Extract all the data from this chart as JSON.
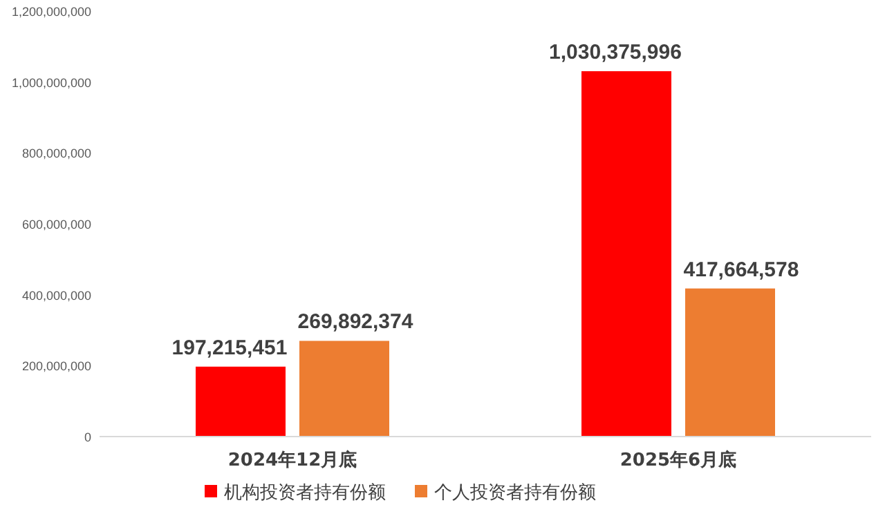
{
  "chart_data": {
    "type": "bar",
    "categories": [
      "2024年12月底",
      "2025年6月底"
    ],
    "series": [
      {
        "name": "机构投资者持有份额",
        "color": "#ff0000",
        "values": [
          197215451,
          1030375996
        ],
        "value_labels": [
          "197,215,451",
          "1,030,375,996"
        ]
      },
      {
        "name": "个人投资者持有份额",
        "color": "#ed7d31",
        "values": [
          269892374,
          417664578
        ],
        "value_labels": [
          "269,892,374",
          "417,664,578"
        ]
      }
    ],
    "ylim": [
      0,
      1200000000
    ],
    "yticks": [
      0,
      {
        "value": 200000000,
        "label": "200,000,000"
      },
      {
        "value": 400000000,
        "label": "400,000,000"
      },
      {
        "value": 600000000,
        "label": "600,000,000"
      },
      {
        "value": 800000000,
        "label": "800,000,000"
      },
      {
        "value": 1000000000,
        "label": "1,000,000,000"
      },
      {
        "value": 1200000000,
        "label": "1,200,000,000"
      }
    ],
    "legend": "bottom",
    "grid": false
  }
}
